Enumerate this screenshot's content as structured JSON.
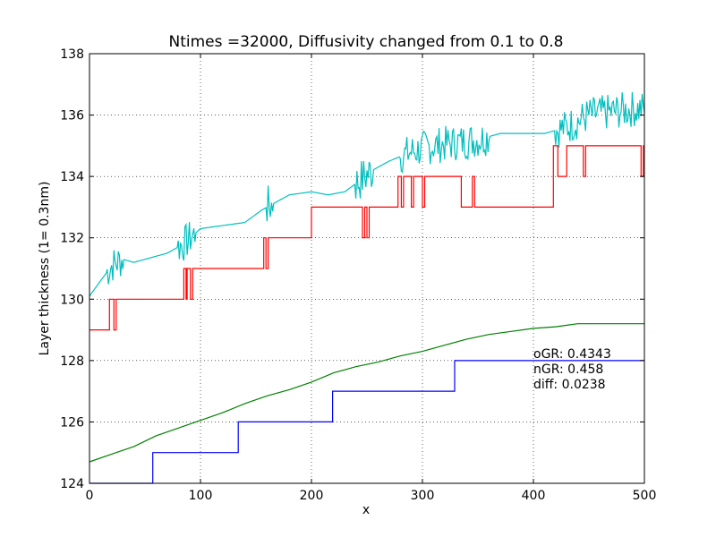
{
  "chart_data": {
    "type": "line",
    "title": "Ntimes =32000, Diffusivity changed from 0.1 to 0.8",
    "xlabel": "x",
    "ylabel": "Layer thickness (1= 0.3nm)",
    "xlim": [
      0,
      500
    ],
    "ylim": [
      124,
      138
    ],
    "xticks": [
      "0",
      "100",
      "200",
      "300",
      "400",
      "500"
    ],
    "yticks": [
      "124",
      "126",
      "128",
      "130",
      "132",
      "134",
      "136",
      "138"
    ],
    "grid": true,
    "annotations": [
      "oGR: 0.4343",
      "nGR: 0.458",
      "diff: 0.0238"
    ],
    "series": [
      {
        "color": "#00bfbf",
        "style": "noisy",
        "x": [
          0,
          10,
          20,
          30,
          40,
          50,
          60,
          70,
          85,
          100,
          120,
          140,
          155,
          165,
          180,
          200,
          215,
          230,
          245,
          255,
          270,
          290,
          310,
          330,
          350,
          370,
          390,
          410,
          430,
          450,
          470,
          490,
          500
        ],
        "values": [
          130.1,
          130.6,
          131.1,
          131.3,
          131.2,
          131.3,
          131.4,
          131.5,
          131.8,
          132.3,
          132.4,
          132.5,
          132.9,
          133.1,
          133.4,
          133.5,
          133.4,
          133.5,
          133.9,
          134.2,
          134.5,
          134.8,
          135.0,
          135.1,
          135.2,
          135.4,
          135.4,
          135.4,
          135.6,
          136.0,
          136.1,
          136.2,
          136.2
        ],
        "noise": [
          {
            "from": 15,
            "to": 30,
            "amp": 0.6
          },
          {
            "from": 80,
            "to": 95,
            "amp": 0.6
          },
          {
            "from": 160,
            "to": 165,
            "amp": 0.7
          },
          {
            "from": 240,
            "to": 255,
            "amp": 0.7
          },
          {
            "from": 280,
            "to": 360,
            "amp": 0.6
          },
          {
            "from": 420,
            "to": 500,
            "amp": 0.6
          }
        ]
      },
      {
        "color": "#ff0000",
        "style": "step",
        "x": [
          0,
          18,
          88,
          157,
          248,
          278,
          418,
          500
        ],
        "values": [
          129,
          130,
          131,
          132,
          133,
          134,
          135,
          135
        ],
        "spikes": [
          [
            18,
            129
          ],
          [
            20,
            130
          ],
          [
            22,
            129
          ],
          [
            24,
            130
          ],
          [
            83,
            130
          ],
          [
            85,
            131
          ],
          [
            87,
            130
          ],
          [
            89,
            131
          ],
          [
            91,
            130
          ],
          [
            93,
            131
          ],
          [
            155,
            131
          ],
          [
            157,
            132
          ],
          [
            159,
            131
          ],
          [
            161,
            132
          ],
          [
            200,
            133
          ],
          [
            246,
            132
          ],
          [
            248,
            133
          ],
          [
            250,
            132
          ],
          [
            252,
            133
          ],
          [
            277,
            133
          ],
          [
            279,
            134
          ],
          [
            281,
            133
          ],
          [
            283,
            134
          ],
          [
            290,
            133
          ],
          [
            292,
            134
          ],
          [
            300,
            133
          ],
          [
            302,
            134
          ],
          [
            335,
            133
          ],
          [
            345,
            134
          ],
          [
            347,
            133
          ],
          [
            418,
            134
          ],
          [
            420,
            135
          ],
          [
            422,
            134
          ],
          [
            430,
            135
          ],
          [
            445,
            134
          ],
          [
            447,
            135
          ],
          [
            497,
            134
          ],
          [
            499,
            135
          ]
        ]
      },
      {
        "color": "#008000",
        "style": "line",
        "x": [
          0,
          20,
          40,
          60,
          80,
          100,
          120,
          140,
          160,
          180,
          200,
          220,
          240,
          260,
          280,
          300,
          320,
          340,
          360,
          380,
          400,
          420,
          440,
          460,
          480,
          500
        ],
        "values": [
          124.7,
          124.95,
          125.2,
          125.55,
          125.8,
          126.05,
          126.3,
          126.6,
          126.85,
          127.05,
          127.3,
          127.6,
          127.8,
          127.95,
          128.15,
          128.3,
          128.5,
          128.7,
          128.85,
          128.95,
          129.05,
          129.1,
          129.2,
          129.2,
          129.2,
          129.2
        ]
      },
      {
        "color": "#0000ff",
        "style": "step",
        "x": [
          0,
          57,
          134,
          219,
          329,
          500
        ],
        "values": [
          124,
          125,
          126,
          127,
          128,
          128
        ]
      }
    ]
  }
}
